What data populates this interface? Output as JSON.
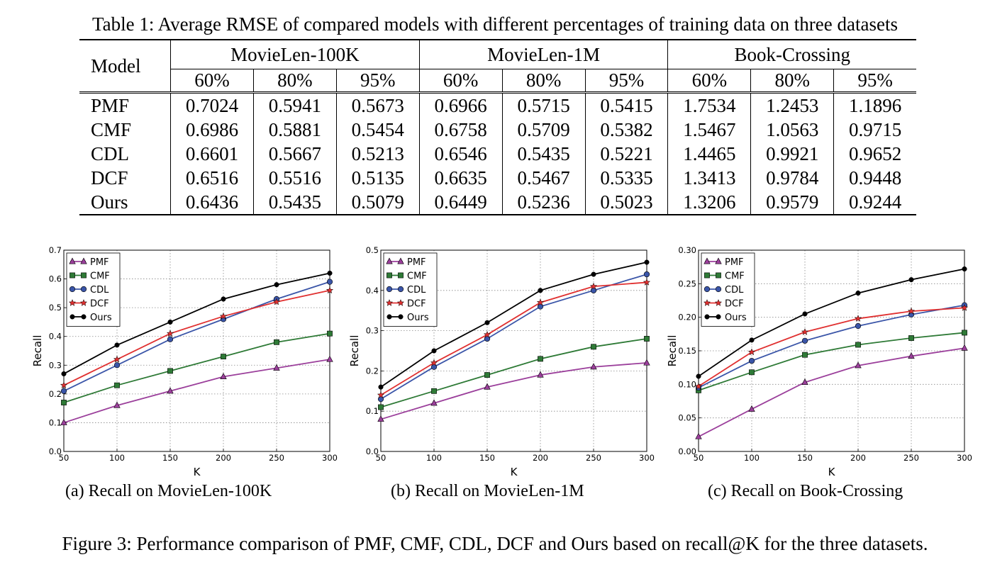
{
  "table": {
    "caption": "Table 1: Average RMSE of compared models with different percentages of training data on three datasets",
    "model_header": "Model",
    "datasets": [
      "MovieLen-100K",
      "MovieLen-1M",
      "Book-Crossing"
    ],
    "percentages": [
      "60%",
      "80%",
      "95%",
      "60%",
      "80%",
      "95%",
      "60%",
      "80%",
      "95%"
    ],
    "rows": [
      {
        "model": "PMF",
        "values": [
          "0.7024",
          "0.5941",
          "0.5673",
          "0.6966",
          "0.5715",
          "0.5415",
          "1.7534",
          "1.2453",
          "1.1896"
        ]
      },
      {
        "model": "CMF",
        "values": [
          "0.6986",
          "0.5881",
          "0.5454",
          "0.6758",
          "0.5709",
          "0.5382",
          "1.5467",
          "1.0563",
          "0.9715"
        ]
      },
      {
        "model": "CDL",
        "values": [
          "0.6601",
          "0.5667",
          "0.5213",
          "0.6546",
          "0.5435",
          "0.5221",
          "1.4465",
          "0.9921",
          "0.9652"
        ]
      },
      {
        "model": "DCF",
        "values": [
          "0.6516",
          "0.5516",
          "0.5135",
          "0.6635",
          "0.5467",
          "0.5335",
          "1.3413",
          "0.9784",
          "0.9448"
        ]
      },
      {
        "model": "Ours",
        "values": [
          "0.6436",
          "0.5435",
          "0.5079",
          "0.6449",
          "0.5236",
          "0.5023",
          "1.3206",
          "0.9579",
          "0.9244"
        ]
      }
    ]
  },
  "series_colors": {
    "PMF": "#9b3f9b",
    "CMF": "#2e7a36",
    "CDL": "#3a55a8",
    "DCF": "#e03030",
    "Ours": "#000000"
  },
  "chart_data": [
    {
      "type": "line",
      "title": "(a) Recall on MovieLen-100K",
      "xlabel": "K",
      "ylabel": "Recall",
      "x": [
        50,
        100,
        150,
        200,
        250,
        300
      ],
      "xlim": [
        50,
        300
      ],
      "ylim": [
        0.0,
        0.7
      ],
      "xticks": [
        "50",
        "100",
        "150",
        "200",
        "250",
        "300"
      ],
      "yticks": [
        "0.0",
        "0.1",
        "0.2",
        "0.3",
        "0.4",
        "0.5",
        "0.6",
        "0.7"
      ],
      "grid": true,
      "legend": "top-left",
      "series": [
        {
          "name": "PMF",
          "marker": "triangle",
          "values": [
            0.1,
            0.16,
            0.21,
            0.26,
            0.29,
            0.32
          ]
        },
        {
          "name": "CMF",
          "marker": "square",
          "values": [
            0.17,
            0.23,
            0.28,
            0.33,
            0.38,
            0.41
          ]
        },
        {
          "name": "CDL",
          "marker": "circle",
          "values": [
            0.21,
            0.3,
            0.39,
            0.46,
            0.53,
            0.59
          ]
        },
        {
          "name": "DCF",
          "marker": "star",
          "values": [
            0.23,
            0.32,
            0.41,
            0.47,
            0.52,
            0.56
          ]
        },
        {
          "name": "Ours",
          "marker": "dot",
          "values": [
            0.27,
            0.37,
            0.45,
            0.53,
            0.58,
            0.62
          ]
        }
      ]
    },
    {
      "type": "line",
      "title": "(b) Recall on MovieLen-1M",
      "xlabel": "K",
      "ylabel": "Recall",
      "x": [
        50,
        100,
        150,
        200,
        250,
        300
      ],
      "xlim": [
        50,
        300
      ],
      "ylim": [
        0.0,
        0.5
      ],
      "xticks": [
        "50",
        "100",
        "150",
        "200",
        "250",
        "300"
      ],
      "yticks": [
        "0.0",
        "0.1",
        "0.2",
        "0.3",
        "0.4",
        "0.5"
      ],
      "grid": true,
      "legend": "top-left",
      "series": [
        {
          "name": "PMF",
          "marker": "triangle",
          "values": [
            0.08,
            0.12,
            0.16,
            0.19,
            0.21,
            0.22
          ]
        },
        {
          "name": "CMF",
          "marker": "square",
          "values": [
            0.11,
            0.15,
            0.19,
            0.23,
            0.26,
            0.28
          ]
        },
        {
          "name": "CDL",
          "marker": "circle",
          "values": [
            0.13,
            0.21,
            0.28,
            0.36,
            0.4,
            0.44
          ]
        },
        {
          "name": "DCF",
          "marker": "star",
          "values": [
            0.14,
            0.22,
            0.29,
            0.37,
            0.41,
            0.42
          ]
        },
        {
          "name": "Ours",
          "marker": "dot",
          "values": [
            0.16,
            0.25,
            0.32,
            0.4,
            0.44,
            0.47
          ]
        }
      ]
    },
    {
      "type": "line",
      "title": "(c) Recall on Book-Crossing",
      "xlabel": "K",
      "ylabel": "Recall",
      "x": [
        50,
        100,
        150,
        200,
        250,
        300
      ],
      "xlim": [
        50,
        300
      ],
      "ylim": [
        0.0,
        0.3
      ],
      "xticks": [
        "50",
        "100",
        "150",
        "200",
        "250",
        "300"
      ],
      "yticks": [
        "0.00",
        "0.05",
        "0.10",
        "0.15",
        "0.20",
        "0.25",
        "0.30"
      ],
      "grid": true,
      "legend": "top-left",
      "series": [
        {
          "name": "PMF",
          "marker": "triangle",
          "values": [
            0.022,
            0.063,
            0.103,
            0.128,
            0.142,
            0.154
          ]
        },
        {
          "name": "CMF",
          "marker": "square",
          "values": [
            0.091,
            0.118,
            0.144,
            0.159,
            0.169,
            0.177
          ]
        },
        {
          "name": "CDL",
          "marker": "circle",
          "values": [
            0.095,
            0.135,
            0.165,
            0.187,
            0.204,
            0.218
          ]
        },
        {
          "name": "DCF",
          "marker": "star",
          "values": [
            0.097,
            0.148,
            0.178,
            0.198,
            0.209,
            0.214
          ]
        },
        {
          "name": "Ours",
          "marker": "dot",
          "values": [
            0.112,
            0.166,
            0.205,
            0.236,
            0.256,
            0.272
          ]
        }
      ]
    }
  ],
  "figure_caption": "Figure 3: Performance comparison of PMF, CMF, CDL, DCF and Ours based on recall@K for the three datasets."
}
